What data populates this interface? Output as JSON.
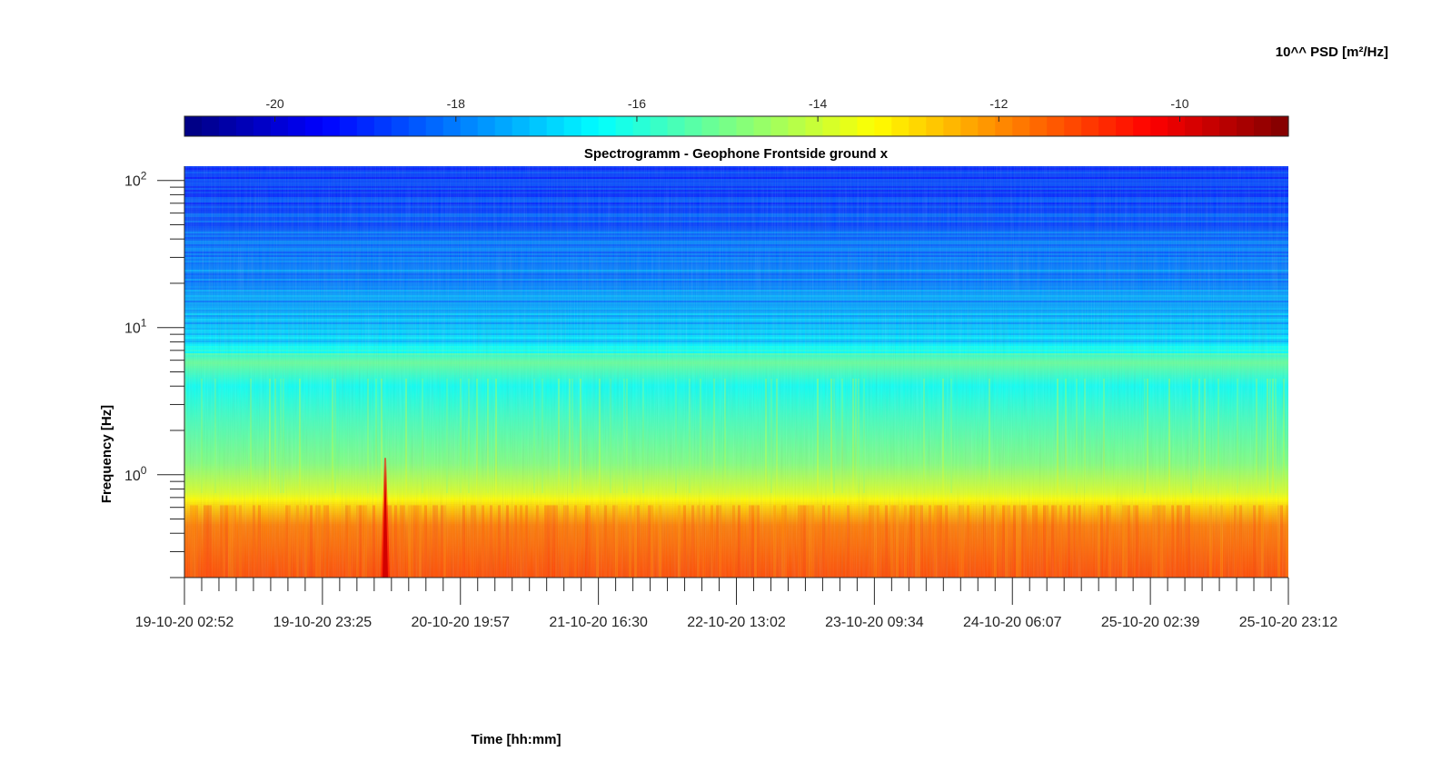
{
  "chart_data": {
    "type": "heatmap",
    "title": "Spectrogramm - Geophone Frontside ground x",
    "xlabel": "Time [hh:mm]",
    "ylabel": "Frequency [Hz]",
    "yscale": "log",
    "ylim": [
      0.2,
      125
    ],
    "x_ticks": [
      "19-10-20 02:52",
      "19-10-20 23:25",
      "20-10-20 19:57",
      "21-10-20 16:30",
      "22-10-20 13:02",
      "23-10-20 09:34",
      "24-10-20 06:07",
      "25-10-20 02:39",
      "25-10-20 23:12"
    ],
    "y_ticks": [
      {
        "base": "10",
        "exp": "0",
        "value": 1
      },
      {
        "base": "10",
        "exp": "1",
        "value": 10
      },
      {
        "base": "10",
        "exp": "2",
        "value": 100
      }
    ],
    "colorbar": {
      "label": "10^^ PSD [m²/Hz]",
      "limits": [
        -21,
        -8.8
      ],
      "ticks": [
        -20,
        -18,
        -16,
        -14,
        -12,
        -10
      ],
      "tick_labels": [
        "-20",
        "-18",
        "-16",
        "-14",
        "-12",
        "-10"
      ],
      "colormap": "jet",
      "levels": 64
    },
    "psd_profile_by_frequency": [
      {
        "freq_hz": 0.2,
        "log10_psd": -11.2
      },
      {
        "freq_hz": 0.45,
        "log10_psd": -11.8
      },
      {
        "freq_hz": 0.6,
        "log10_psd": -12.8
      },
      {
        "freq_hz": 0.75,
        "log10_psd": -13.8
      },
      {
        "freq_hz": 1.2,
        "log10_psd": -14.9
      },
      {
        "freq_hz": 2.5,
        "log10_psd": -15.7
      },
      {
        "freq_hz": 4,
        "log10_psd": -16.3
      },
      {
        "freq_hz": 5.8,
        "log10_psd": -15.2
      },
      {
        "freq_hz": 8,
        "log10_psd": -17.0
      },
      {
        "freq_hz": 15,
        "log10_psd": -17.6
      },
      {
        "freq_hz": 30,
        "log10_psd": -18.0
      },
      {
        "freq_hz": 60,
        "log10_psd": -18.6
      },
      {
        "freq_hz": 125,
        "log10_psd": -19.0
      }
    ],
    "transient_event": {
      "time": "19-10-20 ~30:00",
      "freq_range_hz": [
        0.2,
        1.3
      ],
      "log10_psd": -9.8
    }
  }
}
